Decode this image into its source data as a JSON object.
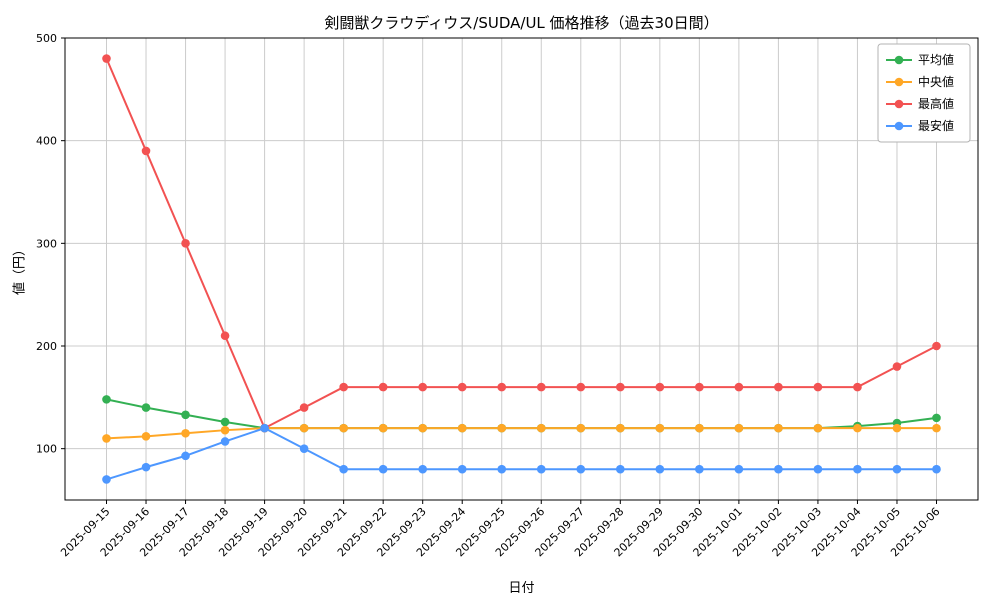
{
  "chart_data": {
    "type": "line",
    "title": "剣闘獣クラウディウス/SUDA/UL 価格推移（過去30日間）",
    "xlabel": "日付",
    "ylabel": "値（円）",
    "x": [
      "2025-09-15",
      "2025-09-16",
      "2025-09-17",
      "2025-09-18",
      "2025-09-19",
      "2025-09-20",
      "2025-09-21",
      "2025-09-22",
      "2025-09-23",
      "2025-09-24",
      "2025-09-25",
      "2025-09-26",
      "2025-09-27",
      "2025-09-28",
      "2025-09-29",
      "2025-09-30",
      "2025-10-01",
      "2025-10-02",
      "2025-10-03",
      "2025-10-04",
      "2025-10-05",
      "2025-10-06"
    ],
    "series": [
      {
        "name": "平均値",
        "color": "#33b053",
        "values": [
          148,
          140,
          133,
          126,
          120,
          120,
          120,
          120,
          120,
          120,
          120,
          120,
          120,
          120,
          120,
          120,
          120,
          120,
          120,
          122,
          125,
          130
        ]
      },
      {
        "name": "中央値",
        "color": "#ffa726",
        "values": [
          110,
          112,
          115,
          118,
          120,
          120,
          120,
          120,
          120,
          120,
          120,
          120,
          120,
          120,
          120,
          120,
          120,
          120,
          120,
          120,
          120,
          120
        ]
      },
      {
        "name": "最高値",
        "color": "#f25252",
        "values": [
          480,
          390,
          300,
          210,
          120,
          140,
          160,
          160,
          160,
          160,
          160,
          160,
          160,
          160,
          160,
          160,
          160,
          160,
          160,
          160,
          180,
          200
        ]
      },
      {
        "name": "最安値",
        "color": "#4d97ff",
        "values": [
          70,
          82,
          93,
          107,
          120,
          100,
          80,
          80,
          80,
          80,
          80,
          80,
          80,
          80,
          80,
          80,
          80,
          80,
          80,
          80,
          80,
          80
        ]
      }
    ],
    "ylim": [
      50,
      500
    ],
    "yticks": [
      100,
      200,
      300,
      400,
      500
    ],
    "grid": true,
    "grid_color": "#cccccc",
    "background": "#ffffff",
    "legend_position": "upper right"
  }
}
